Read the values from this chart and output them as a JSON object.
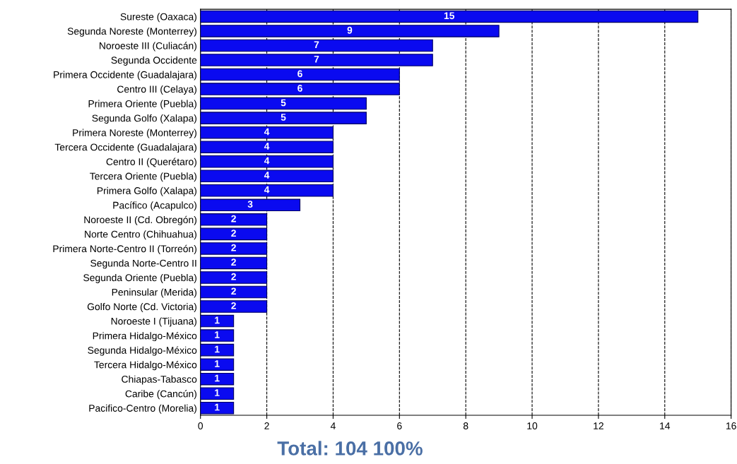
{
  "chart_data": {
    "type": "bar",
    "orientation": "horizontal",
    "categories": [
      "Sureste (Oaxaca)",
      "Segunda Noreste (Monterrey)",
      "Noroeste III (Culiacán)",
      "Segunda Occidente",
      "Primera Occidente (Guadalajara)",
      "Centro III (Celaya)",
      "Primera Oriente (Puebla)",
      "Segunda Golfo (Xalapa)",
      "Primera Noreste (Monterrey)",
      "Tercera Occidente (Guadalajara)",
      "Centro II (Querétaro)",
      "Tercera Oriente (Puebla)",
      "Primera Golfo (Xalapa)",
      "Pacífico (Acapulco)",
      "Noroeste II (Cd. Obregón)",
      "Norte Centro (Chihuahua)",
      "Primera Norte-Centro II (Torreón)",
      "Segunda Norte-Centro II",
      "Segunda Oriente (Puebla)",
      "Peninsular (Merida)",
      "Golfo Norte (Cd. Victoria)",
      "Noroeste I (Tijuana)",
      "Primera Hidalgo-México",
      "Segunda Hidalgo-México",
      "Tercera Hidalgo-México",
      "Chiapas-Tabasco",
      "Caribe (Cancún)",
      "Pacifico-Centro (Morelia)"
    ],
    "values": [
      15,
      9,
      7,
      7,
      6,
      6,
      5,
      5,
      4,
      4,
      4,
      4,
      4,
      3,
      2,
      2,
      2,
      2,
      2,
      2,
      2,
      1,
      1,
      1,
      1,
      1,
      1,
      1
    ],
    "color": "#0a0af0",
    "xlim": [
      0,
      16
    ],
    "xticks": [
      0,
      2,
      4,
      6,
      8,
      10,
      12,
      14,
      16
    ],
    "grid": "x",
    "data_labels": true,
    "annotations": [
      "Total: 104 100%"
    ]
  }
}
